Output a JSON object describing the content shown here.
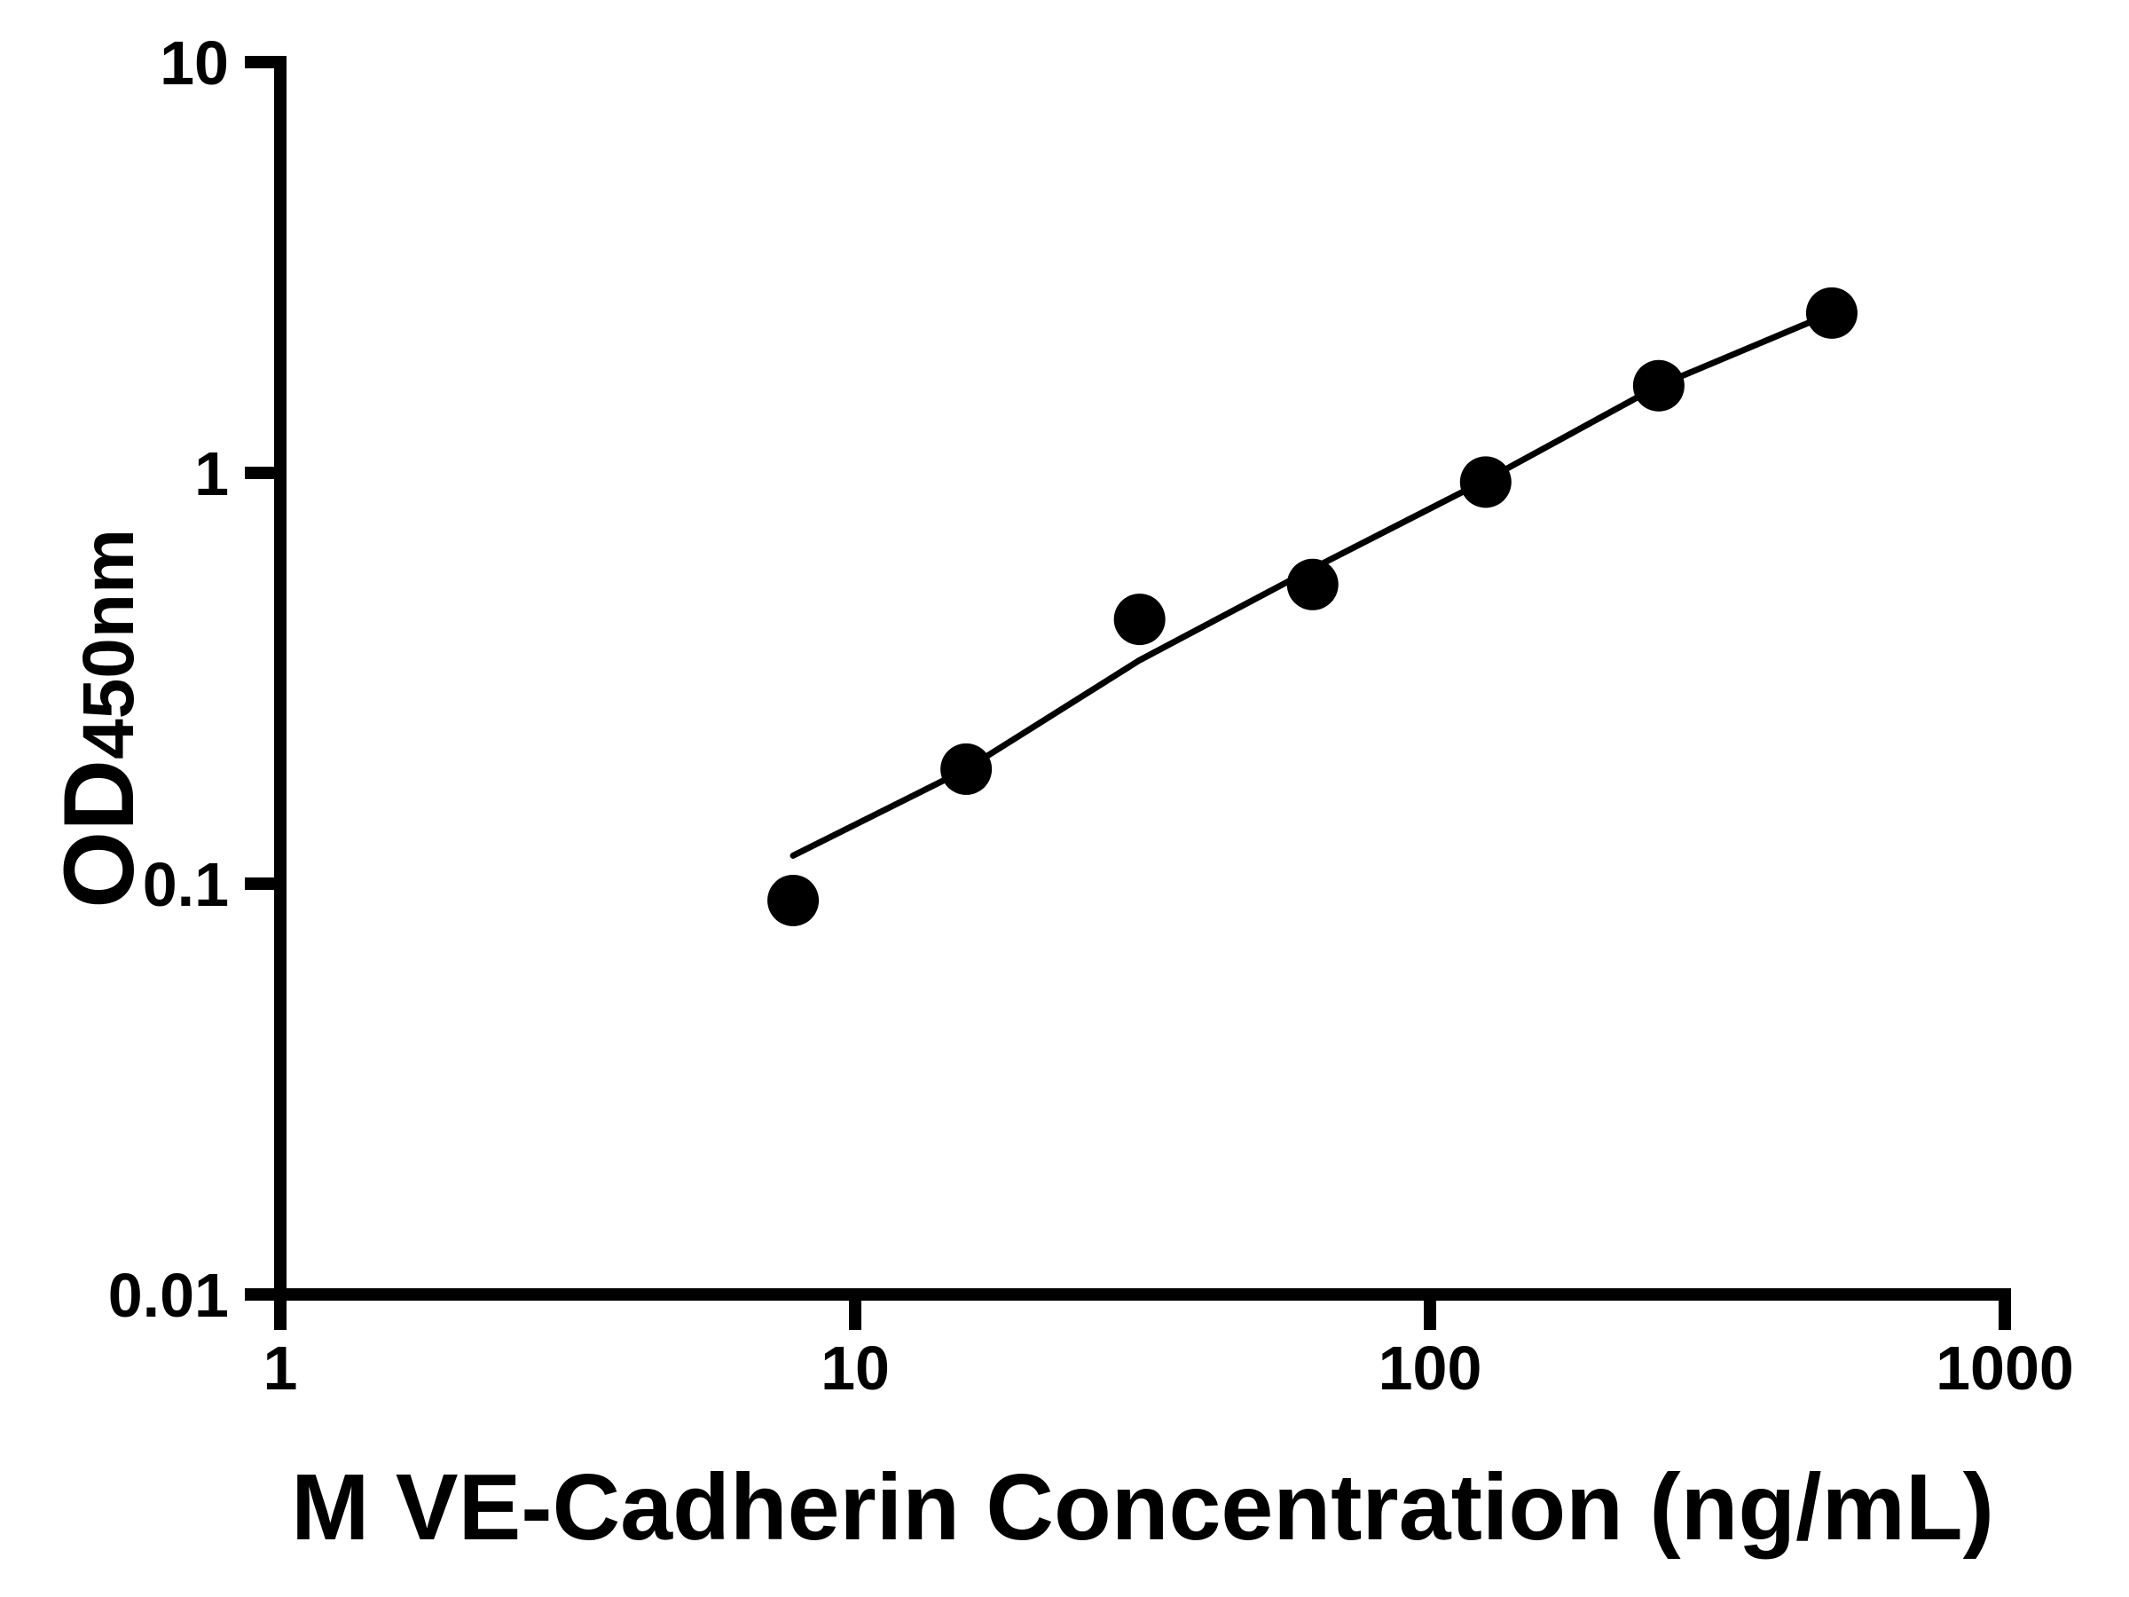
{
  "chart_data": {
    "type": "scatter",
    "title": "",
    "xlabel": "M VE-Cadherin Concentration (ng/mL)",
    "ylabel_main": "OD",
    "ylabel_sub": "450nm",
    "x_scale": "log10",
    "y_scale": "log10",
    "xlim": [
      1,
      1000
    ],
    "ylim": [
      0.01,
      10
    ],
    "x_ticks": [
      1,
      10,
      100,
      1000
    ],
    "x_tick_labels": [
      "1",
      "10",
      "100",
      "1000"
    ],
    "y_ticks": [
      0.01,
      0.1,
      1,
      10
    ],
    "y_tick_labels": [
      "0.01",
      "0.1",
      "1",
      "10"
    ],
    "grid": false,
    "legend": "none",
    "axis_color": "#000000",
    "marker_color": "#000000",
    "line_color": "#000000",
    "background_color": "#ffffff",
    "marker_style": "filled-circle",
    "points": [
      {
        "x": 7.8,
        "y": 0.091
      },
      {
        "x": 15.6,
        "y": 0.19
      },
      {
        "x": 31.25,
        "y": 0.44
      },
      {
        "x": 62.5,
        "y": 0.535
      },
      {
        "x": 125,
        "y": 0.95
      },
      {
        "x": 250,
        "y": 1.63
      },
      {
        "x": 500,
        "y": 2.45
      }
    ],
    "fit_line": [
      {
        "x": 7.8,
        "y": 0.117
      },
      {
        "x": 15.6,
        "y": 0.19
      },
      {
        "x": 31.25,
        "y": 0.35
      },
      {
        "x": 62.5,
        "y": 0.585
      },
      {
        "x": 125,
        "y": 0.96
      },
      {
        "x": 250,
        "y": 1.63
      },
      {
        "x": 500,
        "y": 2.45
      }
    ]
  }
}
